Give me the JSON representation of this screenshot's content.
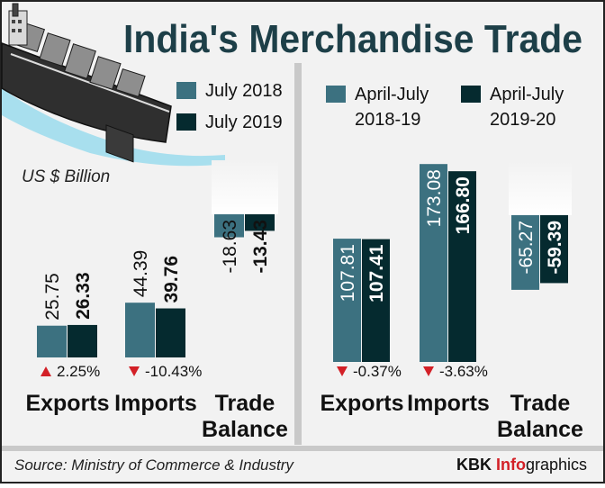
{
  "title": "India's Merchandise Trade",
  "unit_note": "US $ Billion",
  "source": "Source: Ministry of Commerce & Industry",
  "brand": {
    "prefix": "KBK ",
    "highlight": "Info",
    "suffix": "graphics"
  },
  "colors": {
    "series_a": "#3c7180",
    "series_b": "#052a2f",
    "title": "#1d3f48",
    "down": "#d32027",
    "up": "#d32027",
    "background": "#f2f2f2",
    "divider": "#c9c9c9"
  },
  "icons": {
    "illustration": "cargo-ship-icon"
  },
  "chart_data": [
    {
      "type": "bar",
      "legend_position": "top",
      "categories": [
        "Exports",
        "Imports",
        "Trade Balance"
      ],
      "category_lines": [
        [
          "Exports"
        ],
        [
          "Imports"
        ],
        [
          "Trade",
          "Balance"
        ]
      ],
      "series": [
        {
          "name": "July 2018",
          "name_lines": [
            "July 2018"
          ],
          "values": [
            25.75,
            44.39,
            -18.63
          ],
          "labels": [
            "25.75",
            "44.39",
            "-18.63"
          ]
        },
        {
          "name": "July 2019",
          "name_lines": [
            "July 2019"
          ],
          "values": [
            26.33,
            39.76,
            -13.43
          ],
          "labels": [
            "26.33",
            "39.76",
            "-13.43"
          ]
        }
      ],
      "changes": [
        {
          "direction": "up",
          "label": "2.25%"
        },
        {
          "direction": "down",
          "label": "-10.43%"
        },
        null
      ]
    },
    {
      "type": "bar",
      "legend_position": "top",
      "categories": [
        "Exports",
        "Imports",
        "Trade Balance"
      ],
      "category_lines": [
        [
          "Exports"
        ],
        [
          "Imports"
        ],
        [
          "Trade",
          "Balance"
        ]
      ],
      "series": [
        {
          "name": "April-July 2018-19",
          "name_lines": [
            "April-July",
            "2018-19"
          ],
          "values": [
            107.81,
            173.08,
            -65.27
          ],
          "labels": [
            "107.81",
            "173.08",
            "-65.27"
          ]
        },
        {
          "name": "April-July 2019-20",
          "name_lines": [
            "April-July",
            "2019-20"
          ],
          "values": [
            107.41,
            166.8,
            -59.39
          ],
          "labels": [
            "107.41",
            "166.80",
            "-59.39"
          ]
        }
      ],
      "changes": [
        {
          "direction": "down",
          "label": "-0.37%"
        },
        {
          "direction": "down",
          "label": "-3.63%"
        },
        null
      ]
    }
  ]
}
